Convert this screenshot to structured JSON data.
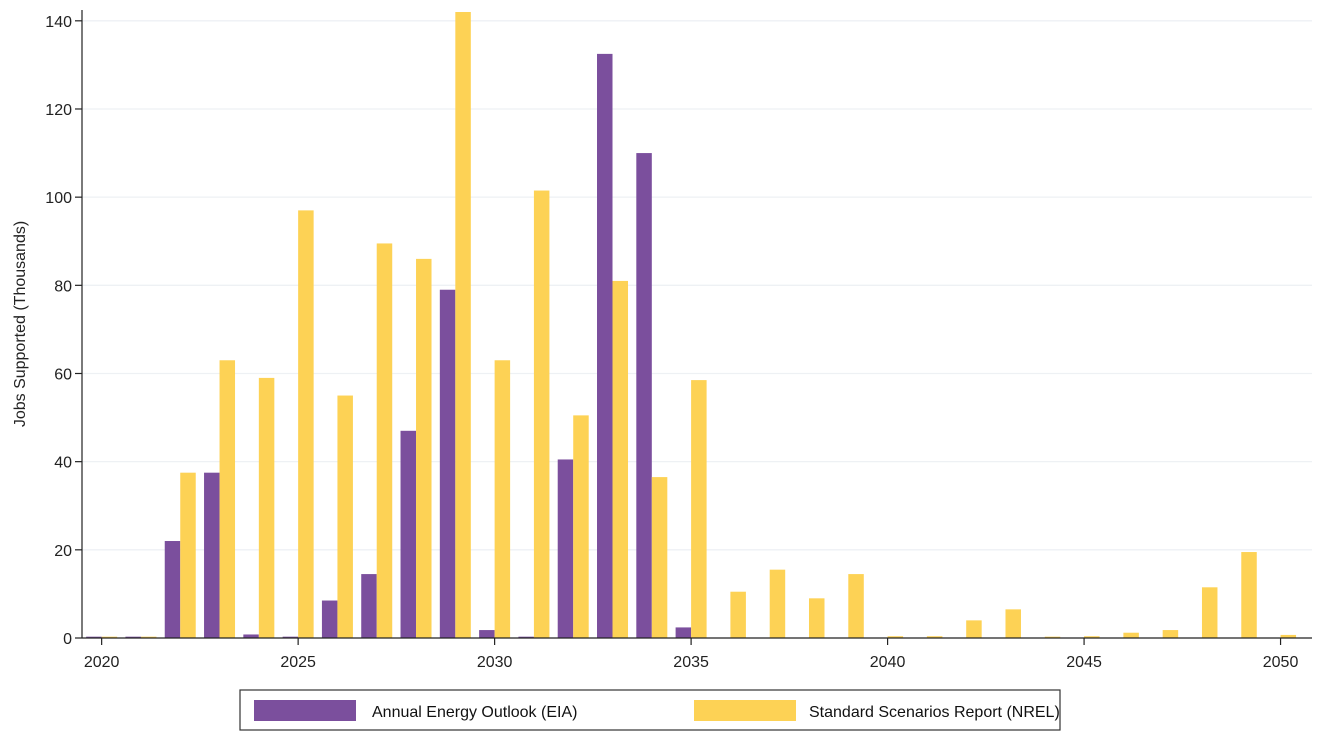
{
  "chart_data": {
    "type": "bar",
    "ylabel": "Jobs Supported (Thousands)",
    "xlabel": "",
    "xlim": [
      2019.5,
      2050.8
    ],
    "ylim": [
      0,
      142
    ],
    "x_ticks": [
      2020,
      2025,
      2030,
      2035,
      2040,
      2045,
      2050
    ],
    "y_ticks": [
      0,
      20,
      40,
      60,
      80,
      100,
      120,
      140
    ],
    "grid": "horizontal",
    "legend_position": "bottom",
    "categories": [
      2020,
      2021,
      2022,
      2023,
      2024,
      2025,
      2026,
      2027,
      2028,
      2029,
      2030,
      2031,
      2032,
      2033,
      2034,
      2035,
      2036,
      2037,
      2038,
      2039,
      2040,
      2041,
      2042,
      2043,
      2044,
      2045,
      2046,
      2047,
      2048,
      2049,
      2050
    ],
    "series": [
      {
        "name": "Annual Energy Outlook (EIA)",
        "color": "#7b4f9d",
        "values": [
          0.3,
          0.3,
          22,
          37.5,
          0.8,
          0.3,
          8.5,
          14.5,
          47,
          79,
          1.8,
          0.3,
          40.5,
          132.5,
          110,
          2.4,
          0,
          0,
          0,
          0,
          0,
          0,
          0,
          0,
          0,
          0,
          0,
          0,
          0,
          0,
          0
        ]
      },
      {
        "name": "Standard Scenarios Report (NREL)",
        "color": "#fdd255",
        "values": [
          0.3,
          0.3,
          37.5,
          63,
          59,
          97,
          55,
          89.5,
          86,
          142,
          63,
          101.5,
          50.5,
          81,
          36.5,
          58.5,
          10.5,
          15.5,
          9,
          14.5,
          0.4,
          0.4,
          4,
          6.5,
          0.3,
          0.4,
          1.2,
          1.8,
          11.5,
          19.5,
          0.7
        ]
      }
    ]
  }
}
